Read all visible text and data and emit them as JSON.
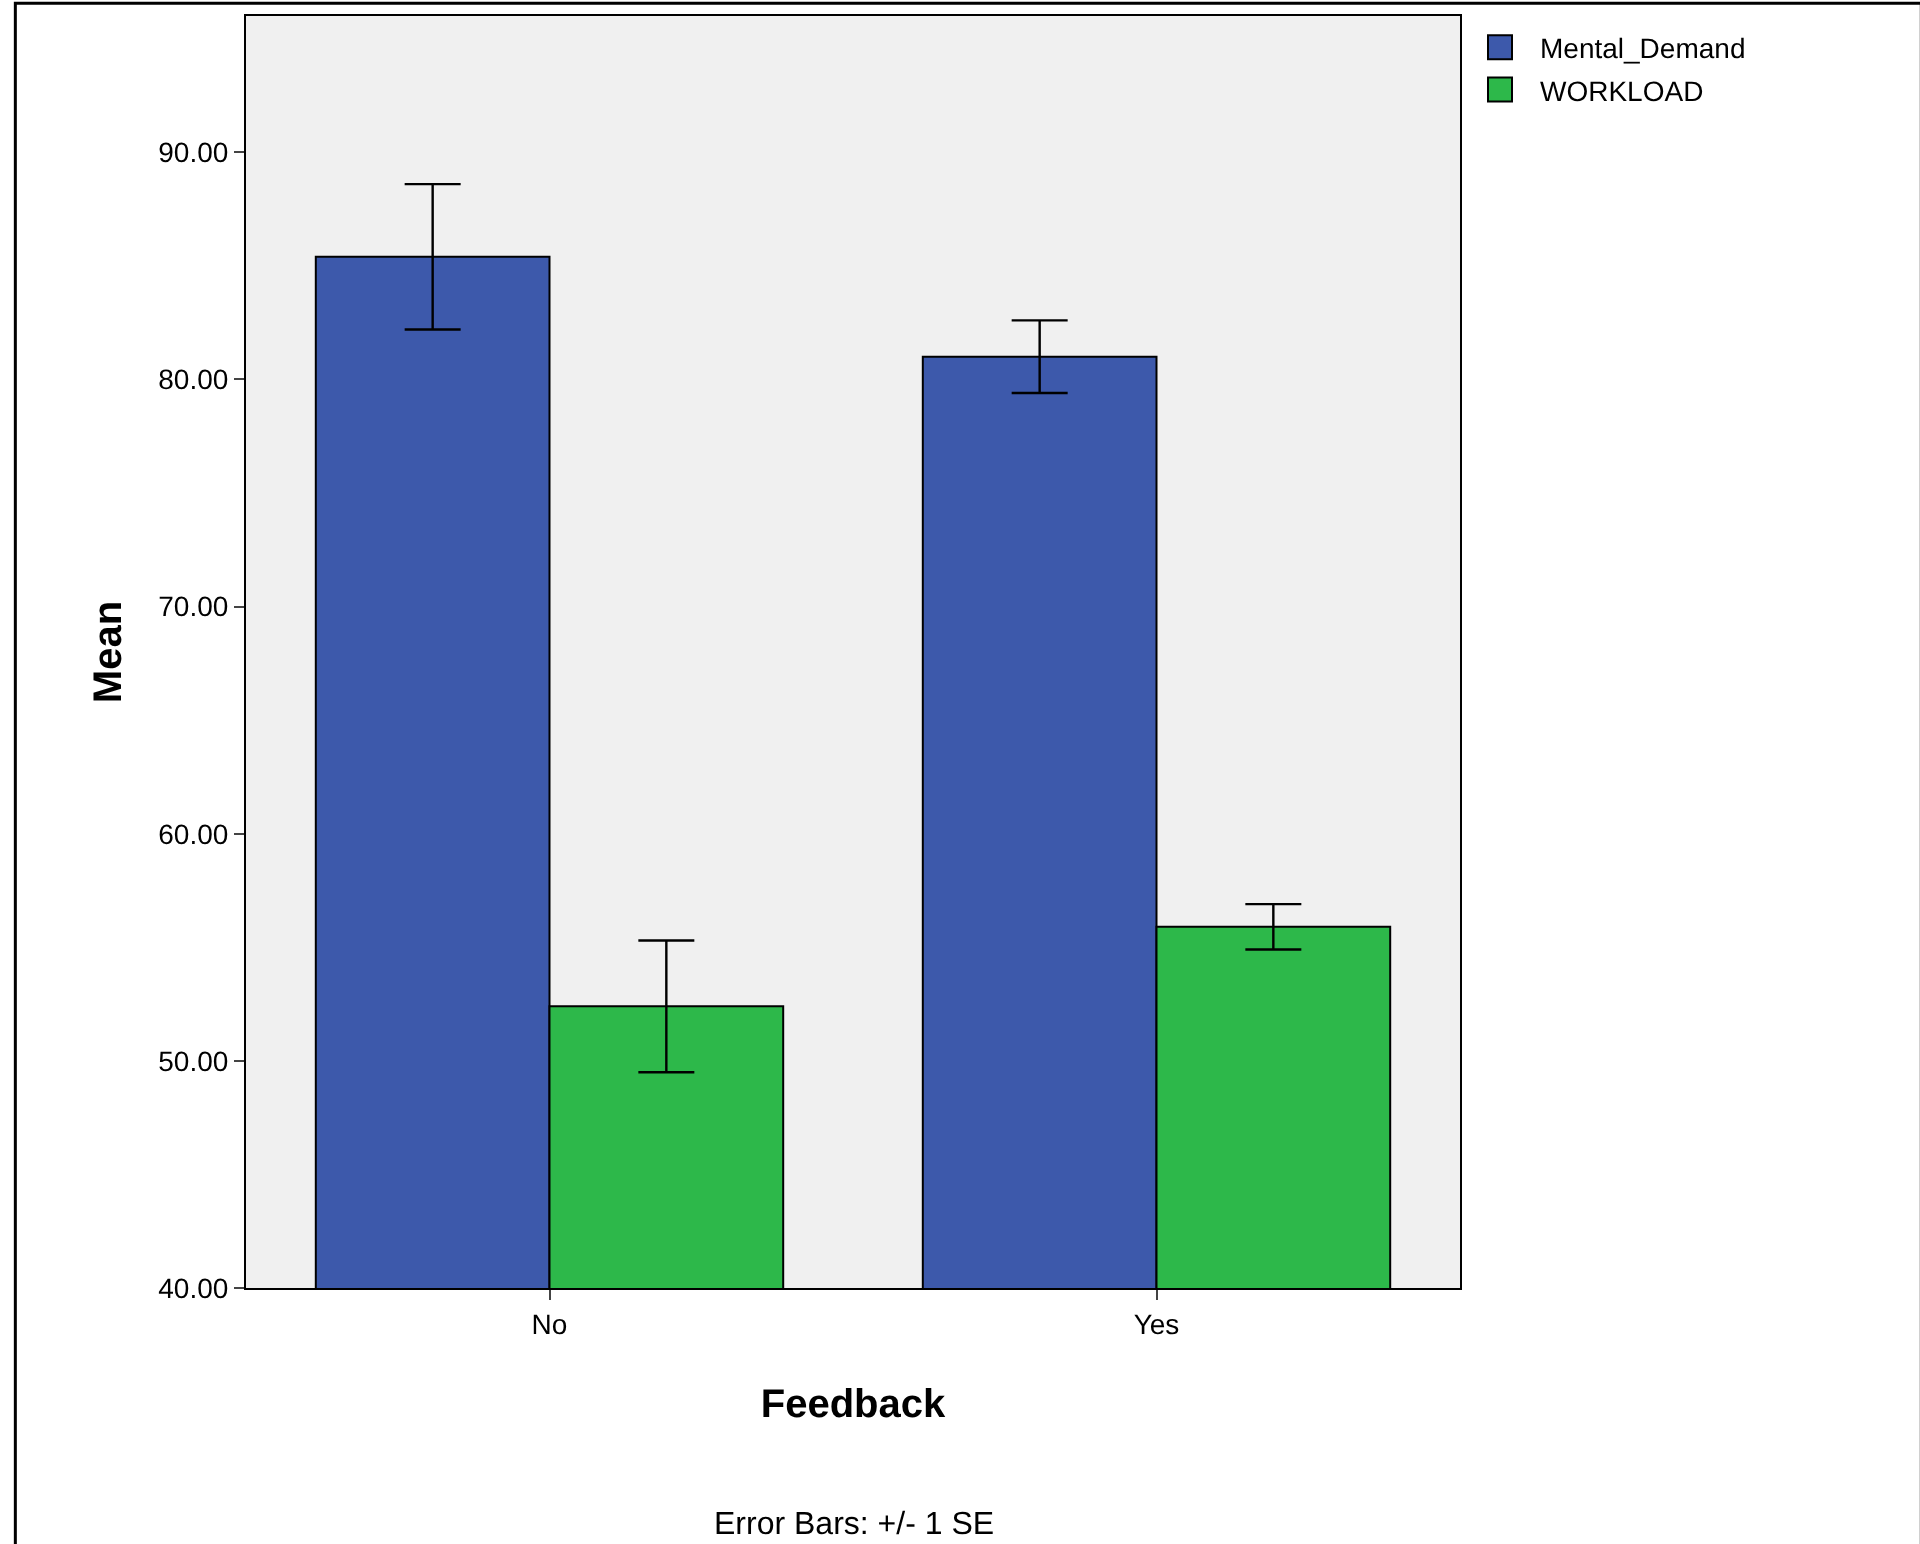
{
  "chart_data": {
    "type": "bar",
    "xlabel": "Feedback",
    "ylabel": "Mean",
    "categories": [
      "No",
      "Yes"
    ],
    "series": [
      {
        "name": "Mental_Demand",
        "color": "#3d59ab",
        "values": [
          85.4,
          81.0
        ],
        "errors": [
          3.2,
          1.6
        ]
      },
      {
        "name": "WORKLOAD",
        "color": "#2db84a",
        "values": [
          52.4,
          55.9
        ],
        "errors": [
          2.9,
          1.0
        ]
      }
    ],
    "ylim": [
      40,
      96
    ],
    "yticks": [
      {
        "value": 40,
        "label": "40.00"
      },
      {
        "value": 50,
        "label": "50.00"
      },
      {
        "value": 60,
        "label": "60.00"
      },
      {
        "value": 70,
        "label": "70.00"
      },
      {
        "value": 80,
        "label": "80.00"
      },
      {
        "value": 90,
        "label": "90.00"
      }
    ],
    "legend": "top right",
    "grid": false,
    "annotations": [
      "Error Bars: +/- 1 SE"
    ]
  }
}
